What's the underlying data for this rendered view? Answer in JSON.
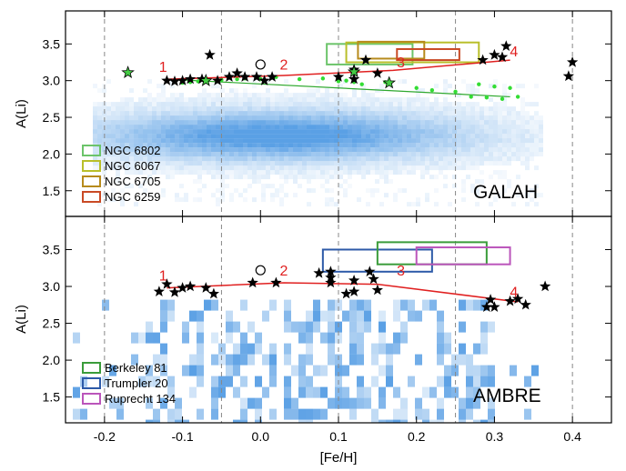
{
  "chart_data": [
    {
      "type": "scatter",
      "panel_label": "GALAH",
      "xlabel": "",
      "ylabel": "A(Li)",
      "xlim": [
        -0.25,
        0.45
      ],
      "ylim": [
        1.15,
        3.95
      ],
      "xticks": [
        -0.2,
        -0.1,
        0.0,
        0.1,
        0.2,
        0.3,
        0.4
      ],
      "yticks": [
        1.5,
        2.0,
        2.5,
        3.0,
        3.5
      ],
      "ytick_labels": [
        "1.5",
        "2.0",
        "2.5",
        "3.0",
        "3.5"
      ],
      "vlines": [
        -0.2,
        -0.05,
        0.1,
        0.25,
        0.4
      ],
      "background_density": {
        "description_color": "#3d8fe0",
        "core_x": [
          -0.2,
          0.3
        ],
        "core_y": [
          1.8,
          2.75
        ]
      },
      "stars": [
        {
          "x": -0.12,
          "y": 3.0
        },
        {
          "x": -0.11,
          "y": 2.99
        },
        {
          "x": -0.1,
          "y": 3.0
        },
        {
          "x": -0.09,
          "y": 3.02
        },
        {
          "x": -0.075,
          "y": 3.02
        },
        {
          "x": -0.065,
          "y": 3.35
        },
        {
          "x": -0.055,
          "y": 3.0
        },
        {
          "x": -0.04,
          "y": 3.05
        },
        {
          "x": -0.03,
          "y": 3.1
        },
        {
          "x": -0.02,
          "y": 3.05
        },
        {
          "x": -0.005,
          "y": 3.05
        },
        {
          "x": 0.005,
          "y": 3.0
        },
        {
          "x": 0.015,
          "y": 3.05
        },
        {
          "x": 0.1,
          "y": 3.05
        },
        {
          "x": 0.12,
          "y": 3.02
        },
        {
          "x": 0.12,
          "y": 3.15
        },
        {
          "x": 0.135,
          "y": 3.28
        },
        {
          "x": 0.15,
          "y": 3.1
        },
        {
          "x": 0.285,
          "y": 3.28
        },
        {
          "x": 0.3,
          "y": 3.35
        },
        {
          "x": 0.31,
          "y": 3.32
        },
        {
          "x": 0.315,
          "y": 3.47
        },
        {
          "x": 0.395,
          "y": 3.06
        },
        {
          "x": 0.4,
          "y": 3.25
        }
      ],
      "green_stars": [
        {
          "x": -0.17,
          "y": 3.11
        },
        {
          "x": -0.07,
          "y": 3.0
        },
        {
          "x": 0.12,
          "y": 3.12
        },
        {
          "x": 0.165,
          "y": 2.97
        }
      ],
      "circle": {
        "x": 0.0,
        "y": 3.22
      },
      "green_dots": [
        {
          "x": -0.1,
          "y": 2.97
        },
        {
          "x": -0.09,
          "y": 2.98
        },
        {
          "x": -0.08,
          "y": 2.99
        },
        {
          "x": -0.07,
          "y": 2.99
        },
        {
          "x": -0.05,
          "y": 3.01
        },
        {
          "x": -0.03,
          "y": 3.02
        },
        {
          "x": -0.02,
          "y": 3.03
        },
        {
          "x": 0.0,
          "y": 3.02
        },
        {
          "x": 0.02,
          "y": 3.05
        },
        {
          "x": 0.05,
          "y": 3.02
        },
        {
          "x": 0.08,
          "y": 3.03
        },
        {
          "x": 0.1,
          "y": 2.99
        },
        {
          "x": 0.11,
          "y": 3.0
        },
        {
          "x": 0.12,
          "y": 2.98
        },
        {
          "x": 0.13,
          "y": 2.95
        },
        {
          "x": 0.16,
          "y": 2.98
        },
        {
          "x": 0.2,
          "y": 2.9
        },
        {
          "x": 0.22,
          "y": 2.87
        },
        {
          "x": 0.25,
          "y": 2.85
        },
        {
          "x": 0.27,
          "y": 2.78
        },
        {
          "x": 0.28,
          "y": 2.95
        },
        {
          "x": 0.29,
          "y": 2.77
        },
        {
          "x": 0.3,
          "y": 2.92
        },
        {
          "x": 0.31,
          "y": 2.75
        },
        {
          "x": 0.32,
          "y": 2.9
        },
        {
          "x": 0.33,
          "y": 2.78
        }
      ],
      "green_fit": [
        {
          "x": -0.12,
          "y": 3.02
        },
        {
          "x": 0.32,
          "y": 2.78
        }
      ],
      "red_line": [
        {
          "x": -0.12,
          "y": 3.02
        },
        {
          "x": 0.03,
          "y": 3.07
        },
        {
          "x": 0.17,
          "y": 3.14
        },
        {
          "x": 0.32,
          "y": 3.28
        }
      ],
      "red_labels": [
        {
          "text": "1",
          "x": -0.125,
          "y": 3.12
        },
        {
          "text": "2",
          "x": 0.03,
          "y": 3.15
        },
        {
          "text": "3",
          "x": 0.18,
          "y": 3.18
        },
        {
          "text": "4",
          "x": 0.325,
          "y": 3.33
        }
      ],
      "legend": [
        {
          "label": "NGC 6802",
          "color": "#6cc46a"
        },
        {
          "label": "NGC 6067",
          "color": "#b9bf2a"
        },
        {
          "label": "NGC 6705",
          "color": "#b78b1c"
        },
        {
          "label": "NGC 6259",
          "color": "#c94a25"
        }
      ],
      "boxes": [
        {
          "name": "NGC 6802",
          "color": "#6cc46a",
          "x0": 0.085,
          "x1": 0.195,
          "y0": 3.22,
          "y1": 3.5
        },
        {
          "name": "NGC 6067",
          "color": "#b9bf2a",
          "x0": 0.11,
          "x1": 0.28,
          "y0": 3.25,
          "y1": 3.52
        },
        {
          "name": "NGC 6705",
          "color": "#b78b1c",
          "x0": 0.125,
          "x1": 0.21,
          "y0": 3.3,
          "y1": 3.53
        },
        {
          "name": "NGC 6259",
          "color": "#c94a25",
          "x0": 0.175,
          "x1": 0.255,
          "y0": 3.28,
          "y1": 3.43
        }
      ]
    },
    {
      "type": "scatter",
      "panel_label": "AMBRE",
      "xlabel": "[Fe/H]",
      "ylabel": "A(Li)",
      "xlim": [
        -0.25,
        0.45
      ],
      "ylim": [
        1.15,
        3.95
      ],
      "xticks": [
        -0.2,
        -0.1,
        0.0,
        0.1,
        0.2,
        0.3,
        0.4
      ],
      "xtick_labels": [
        "-0.2",
        "-0.1",
        "0.0",
        "0.1",
        "0.2",
        "0.3",
        "0.4"
      ],
      "yticks": [
        1.5,
        2.0,
        2.5,
        3.0,
        3.5
      ],
      "ytick_labels": [
        "1.5",
        "2.0",
        "2.5",
        "3.0",
        "3.5"
      ],
      "vlines": [
        -0.2,
        -0.05,
        0.1,
        0.25,
        0.4
      ],
      "background_grid": {
        "x_range": [
          -0.2,
          0.3
        ],
        "y_range": [
          1.2,
          2.8
        ]
      },
      "stars": [
        {
          "x": -0.13,
          "y": 2.93
        },
        {
          "x": -0.12,
          "y": 3.03
        },
        {
          "x": -0.11,
          "y": 2.92
        },
        {
          "x": -0.1,
          "y": 2.98
        },
        {
          "x": -0.09,
          "y": 3.0
        },
        {
          "x": -0.07,
          "y": 2.98
        },
        {
          "x": -0.06,
          "y": 2.9
        },
        {
          "x": -0.01,
          "y": 3.05
        },
        {
          "x": 0.02,
          "y": 3.05
        },
        {
          "x": 0.075,
          "y": 3.18
        },
        {
          "x": 0.09,
          "y": 3.05
        },
        {
          "x": 0.09,
          "y": 3.2
        },
        {
          "x": 0.09,
          "y": 3.12
        },
        {
          "x": 0.11,
          "y": 2.9
        },
        {
          "x": 0.12,
          "y": 3.08
        },
        {
          "x": 0.12,
          "y": 2.93
        },
        {
          "x": 0.14,
          "y": 3.2
        },
        {
          "x": 0.145,
          "y": 3.1
        },
        {
          "x": 0.15,
          "y": 2.95
        },
        {
          "x": 0.29,
          "y": 2.72
        },
        {
          "x": 0.295,
          "y": 2.82
        },
        {
          "x": 0.3,
          "y": 2.72
        },
        {
          "x": 0.32,
          "y": 2.8
        },
        {
          "x": 0.33,
          "y": 2.83
        },
        {
          "x": 0.34,
          "y": 2.75
        },
        {
          "x": 0.365,
          "y": 3.0
        }
      ],
      "circle": {
        "x": 0.0,
        "y": 3.22
      },
      "red_line": [
        {
          "x": -0.12,
          "y": 2.98
        },
        {
          "x": 0.03,
          "y": 3.05
        },
        {
          "x": 0.15,
          "y": 3.03
        },
        {
          "x": 0.33,
          "y": 2.79
        }
      ],
      "red_labels": [
        {
          "text": "1",
          "x": -0.125,
          "y": 3.08
        },
        {
          "text": "2",
          "x": 0.03,
          "y": 3.15
        },
        {
          "text": "3",
          "x": 0.18,
          "y": 3.15
        },
        {
          "text": "4",
          "x": 0.325,
          "y": 2.86
        }
      ],
      "legend": [
        {
          "label": "Berkeley 81",
          "color": "#3a9c3a"
        },
        {
          "label": "Trumpler 20",
          "color": "#2d5aa8"
        },
        {
          "label": "Ruprecht 134",
          "color": "#bb55bb"
        }
      ],
      "boxes": [
        {
          "name": "Trumpler 20",
          "color": "#2d5aa8",
          "x0": 0.08,
          "x1": 0.22,
          "y0": 3.2,
          "y1": 3.5
        },
        {
          "name": "Berkeley 81",
          "color": "#3a9c3a",
          "x0": 0.15,
          "x1": 0.29,
          "y0": 3.3,
          "y1": 3.6
        },
        {
          "name": "Ruprecht 134",
          "color": "#bb55bb",
          "x0": 0.2,
          "x1": 0.32,
          "y0": 3.3,
          "y1": 3.53
        }
      ]
    }
  ]
}
